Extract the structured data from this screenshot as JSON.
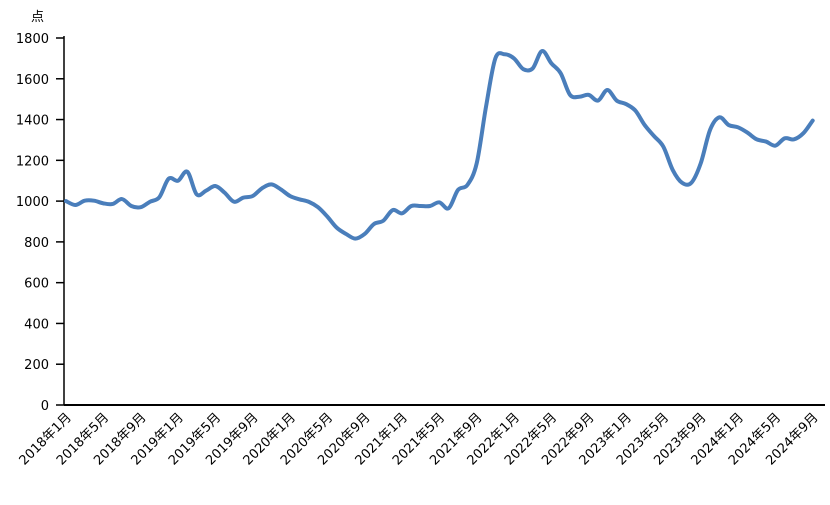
{
  "chart_data": {
    "type": "line",
    "title": "",
    "xlabel": "",
    "ylabel": "点",
    "ylim": [
      0,
      1800
    ],
    "yticks": [
      0,
      200,
      400,
      600,
      800,
      1000,
      1200,
      1400,
      1600,
      1800
    ],
    "grid": false,
    "legend": "none",
    "line_color": "#4a7ebb",
    "x_tick_labels": [
      "2018年1月",
      "2018年5月",
      "2018年9月",
      "2019年1月",
      "2019年5月",
      "2019年9月",
      "2020年1月",
      "2020年5月",
      "2020年9月",
      "2021年1月",
      "2021年5月",
      "2021年9月",
      "2022年1月",
      "2022年5月",
      "2022年9月",
      "2023年1月",
      "2023年5月",
      "2023年9月",
      "2024年1月",
      "2024年5月",
      "2024年9月"
    ],
    "x_start": "2018-01",
    "x_end": "2024-09",
    "x_frequency": "monthly",
    "series": [
      {
        "values": [
          1000,
          981,
          1002,
          1002,
          989,
          986,
          1010,
          976,
          970,
          997,
          1019,
          1110,
          1100,
          1144,
          1033,
          1051,
          1074,
          1041,
          997,
          1017,
          1025,
          1063,
          1082,
          1058,
          1025,
          1009,
          997,
          970,
          924,
          870,
          839,
          816,
          839,
          888,
          904,
          956,
          940,
          976,
          976,
          976,
          994,
          965,
          1055,
          1079,
          1185,
          1463,
          1700,
          1720,
          1700,
          1647,
          1651,
          1736,
          1676,
          1627,
          1521,
          1512,
          1521,
          1493,
          1545,
          1493,
          1476,
          1444,
          1373,
          1319,
          1267,
          1153,
          1090,
          1090,
          1185,
          1349,
          1411,
          1373,
          1362,
          1336,
          1303,
          1292,
          1272,
          1308,
          1303,
          1333,
          1395
        ]
      }
    ]
  }
}
